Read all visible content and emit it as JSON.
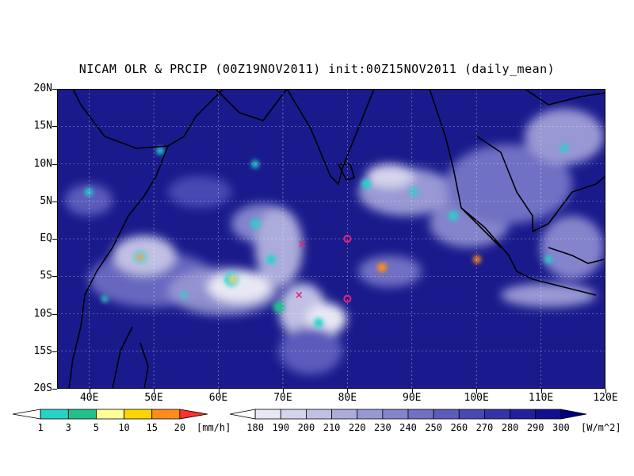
{
  "title": "NICAM OLR & PRCIP (00Z19NOV2011) init:00Z15NOV2011 (daily_mean)",
  "map": {
    "lon_range": [
      35,
      120
    ],
    "lat_range": [
      -20,
      20
    ],
    "x_ticks": [
      "40E",
      "50E",
      "60E",
      "70E",
      "80E",
      "90E",
      "100E",
      "110E",
      "120E"
    ],
    "y_ticks": [
      "20N",
      "15N",
      "10N",
      "5N",
      "EQ",
      "5S",
      "10S",
      "15S",
      "20S"
    ],
    "background_color": "#1a1a8c",
    "markers": [
      {
        "type": "x",
        "label": "x-marker",
        "lon": 73,
        "lat": -0.7
      },
      {
        "type": "x",
        "label": "x-marker",
        "lon": 72.5,
        "lat": -7.5
      },
      {
        "type": "o",
        "label": "o-marker",
        "lon": 80,
        "lat": 0
      },
      {
        "type": "o",
        "label": "o-marker",
        "lon": 80,
        "lat": -8
      }
    ]
  },
  "precip_legend": {
    "labels": [
      "1",
      "3",
      "5",
      "10",
      "15",
      "20"
    ],
    "unit": "[mm/h]",
    "colors": [
      "#ffffff",
      "#27d2c8",
      "#20c08a",
      "#ffff99",
      "#ffd400",
      "#ff8c1a",
      "#ff3030"
    ]
  },
  "olr_legend": {
    "labels": [
      "180",
      "190",
      "200",
      "210",
      "220",
      "230",
      "240",
      "250",
      "260",
      "270",
      "280",
      "290",
      "300"
    ],
    "unit": "[W/m^2]",
    "colors": [
      "#ffffff",
      "#e8e8f4",
      "#d4d4ec",
      "#c0c0e4",
      "#acacdc",
      "#9898d4",
      "#8484cc",
      "#7070c4",
      "#5c5cbc",
      "#4848b4",
      "#3434a8",
      "#20209c",
      "#101090",
      "#000080"
    ]
  }
}
